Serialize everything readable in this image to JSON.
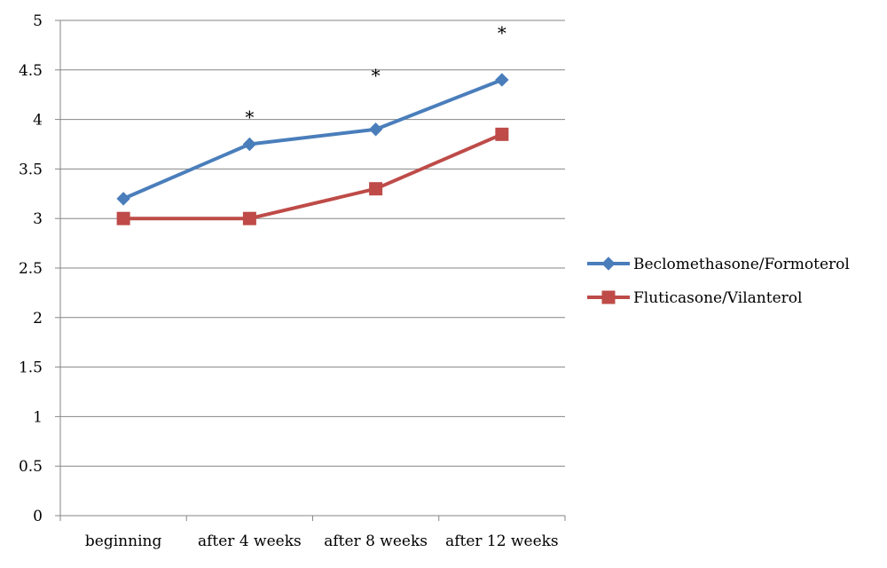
{
  "chart_data": {
    "type": "line",
    "title": "",
    "xlabel": "",
    "ylabel": "",
    "categories": [
      "beginning",
      "after 4 weeks",
      "after 8 weeks",
      "after 12 weeks"
    ],
    "ylim": [
      0,
      5
    ],
    "yticks": [
      0,
      0.5,
      1,
      1.5,
      2,
      2.5,
      3,
      3.5,
      4,
      4.5,
      5
    ],
    "ytick_labels": [
      "0",
      "0.5",
      "1",
      "1.5",
      "2",
      "2.5",
      "3",
      "3.5",
      "4",
      "4.5",
      "5"
    ],
    "grid": true,
    "legend_position": "right",
    "series": [
      {
        "name": "Beclomethasone/Formoterol",
        "values": [
          3.2,
          3.75,
          3.9,
          4.4
        ],
        "color": "#4A7EBB",
        "marker": "diamond"
      },
      {
        "name": "Fluticasone/Vilanterol",
        "values": [
          3.0,
          3.0,
          3.3,
          3.85
        ],
        "color": "#BE4B48",
        "marker": "square"
      }
    ],
    "annotations": [
      {
        "text": "*",
        "category": "after 4 weeks",
        "y": 4.05
      },
      {
        "text": "*",
        "category": "after 8 weeks",
        "y": 4.47
      },
      {
        "text": "*",
        "category": "after 12 weeks",
        "y": 4.9
      }
    ]
  }
}
